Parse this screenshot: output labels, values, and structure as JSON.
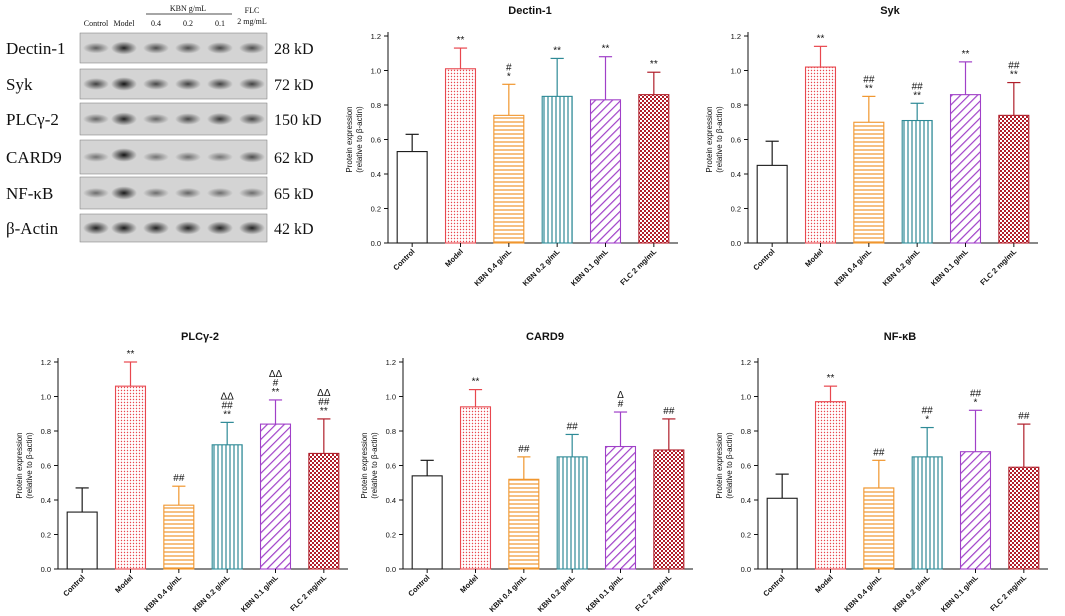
{
  "colors": {
    "control": "#1a1a1a",
    "model": "#e8474e",
    "kbn04": "#f0962e",
    "kbn02": "#2e8a96",
    "kbn01": "#a040c8",
    "flc": "#b01e2a"
  },
  "western_blot": {
    "header": {
      "control": "Control",
      "model": "Model",
      "kbn_group": "KBN  g/mL",
      "kbn04": "0.4",
      "kbn02": "0.2",
      "kbn01": "0.1",
      "flc_line1": "FLC",
      "flc_line2": "2 mg/mL"
    },
    "bands": [
      {
        "protein": "Dectin-1",
        "size": "28 kD"
      },
      {
        "protein": "Syk",
        "size": "72 kD"
      },
      {
        "protein": "PLCγ-2",
        "size": "150 kD"
      },
      {
        "protein": "CARD9",
        "size": "62 kD"
      },
      {
        "protein": "NF-κB",
        "size": "65 kD"
      },
      {
        "protein": "β-Actin",
        "size": "42 kD"
      }
    ]
  },
  "chart_data": [
    {
      "type": "bar",
      "title": "Dectin-1",
      "ylabel_line1": "Protein expression",
      "ylabel_line2": "(relative to β-actin)",
      "categories": [
        "Control",
        "Model",
        "KBN 0.4 g/mL",
        "KBN 0.2 g/mL",
        "KBN 0.1 g/mL",
        "FLC 2 mg/mL"
      ],
      "values": [
        0.53,
        1.01,
        0.74,
        0.85,
        0.83,
        0.86
      ],
      "errors": [
        0.1,
        0.12,
        0.18,
        0.22,
        0.25,
        0.13
      ],
      "significance": [
        [],
        [
          "**"
        ],
        [
          "#",
          "*"
        ],
        [
          "**"
        ],
        [
          "**"
        ],
        [
          "**"
        ]
      ],
      "ylim": [
        0,
        1.2
      ],
      "yticks": [
        "0.0",
        "0.2",
        "0.4",
        "0.6",
        "0.8",
        "1.0",
        "1.2"
      ]
    },
    {
      "type": "bar",
      "title": "Syk",
      "ylabel_line1": "Protein expression",
      "ylabel_line2": "(relative to β-actin)",
      "categories": [
        "Control",
        "Model",
        "KBN 0.4 g/mL",
        "KBN 0.2 g/mL",
        "KBN 0.1 g/mL",
        "FLC 2 mg/mL"
      ],
      "values": [
        0.45,
        1.02,
        0.7,
        0.71,
        0.86,
        0.74
      ],
      "errors": [
        0.14,
        0.12,
        0.15,
        0.1,
        0.19,
        0.19
      ],
      "significance": [
        [],
        [
          "**"
        ],
        [
          "##",
          "**"
        ],
        [
          "##",
          "**"
        ],
        [
          "**"
        ],
        [
          "##",
          "**"
        ]
      ],
      "ylim": [
        0,
        1.2
      ],
      "yticks": [
        "0.0",
        "0.2",
        "0.4",
        "0.6",
        "0.8",
        "1.0",
        "1.2"
      ]
    },
    {
      "type": "bar",
      "title": "PLCγ-2",
      "ylabel_line1": "Protein expression",
      "ylabel_line2": "(relative to β-actin)",
      "categories": [
        "Control",
        "Model",
        "KBN 0.4 g/mL",
        "KBN 0.2 g/mL",
        "KBN 0.1 g/mL",
        "FLC 2 mg/mL"
      ],
      "values": [
        0.33,
        1.06,
        0.37,
        0.72,
        0.84,
        0.67
      ],
      "errors": [
        0.14,
        0.14,
        0.11,
        0.13,
        0.14,
        0.2
      ],
      "significance": [
        [],
        [
          "**"
        ],
        [
          "##"
        ],
        [
          "ΔΔ",
          "##",
          "**"
        ],
        [
          "ΔΔ",
          "#",
          "**"
        ],
        [
          "ΔΔ",
          "##",
          "**"
        ]
      ],
      "ylim": [
        0,
        1.2
      ],
      "yticks": [
        "0.0",
        "0.2",
        "0.4",
        "0.6",
        "0.8",
        "1.0",
        "1.2"
      ]
    },
    {
      "type": "bar",
      "title": "CARD9",
      "ylabel_line1": "Protein expression",
      "ylabel_line2": "(relative to β-actin)",
      "categories": [
        "Control",
        "Model",
        "KBN 0.4 g/mL",
        "KBN 0.2 g/mL",
        "KBN 0.1 g/mL",
        "FLC 2 mg/mL"
      ],
      "values": [
        0.54,
        0.94,
        0.52,
        0.65,
        0.71,
        0.69
      ],
      "errors": [
        0.09,
        0.1,
        0.13,
        0.13,
        0.2,
        0.18
      ],
      "significance": [
        [],
        [
          "**"
        ],
        [
          "##"
        ],
        [
          "##"
        ],
        [
          "Δ",
          "#"
        ],
        [
          "##"
        ]
      ],
      "ylim": [
        0,
        1.2
      ],
      "yticks": [
        "0.0",
        "0.2",
        "0.4",
        "0.6",
        "0.8",
        "1.0",
        "1.2"
      ]
    },
    {
      "type": "bar",
      "title": "NF-κB",
      "ylabel_line1": "Protein expression",
      "ylabel_line2": "(relative to β-actin)",
      "categories": [
        "Control",
        "Model",
        "KBN 0.4 g/mL",
        "KBN 0.2 g/mL",
        "KBN 0.1 g/mL",
        "FLC 2 mg/mL"
      ],
      "values": [
        0.41,
        0.97,
        0.47,
        0.65,
        0.68,
        0.59
      ],
      "errors": [
        0.14,
        0.09,
        0.16,
        0.17,
        0.24,
        0.25
      ],
      "significance": [
        [],
        [
          "**"
        ],
        [
          "##"
        ],
        [
          "##",
          "*"
        ],
        [
          "##",
          "*"
        ],
        [
          "##"
        ]
      ],
      "ylim": [
        0,
        1.2
      ],
      "yticks": [
        "0.0",
        "0.2",
        "0.4",
        "0.6",
        "0.8",
        "1.0",
        "1.2"
      ]
    }
  ]
}
